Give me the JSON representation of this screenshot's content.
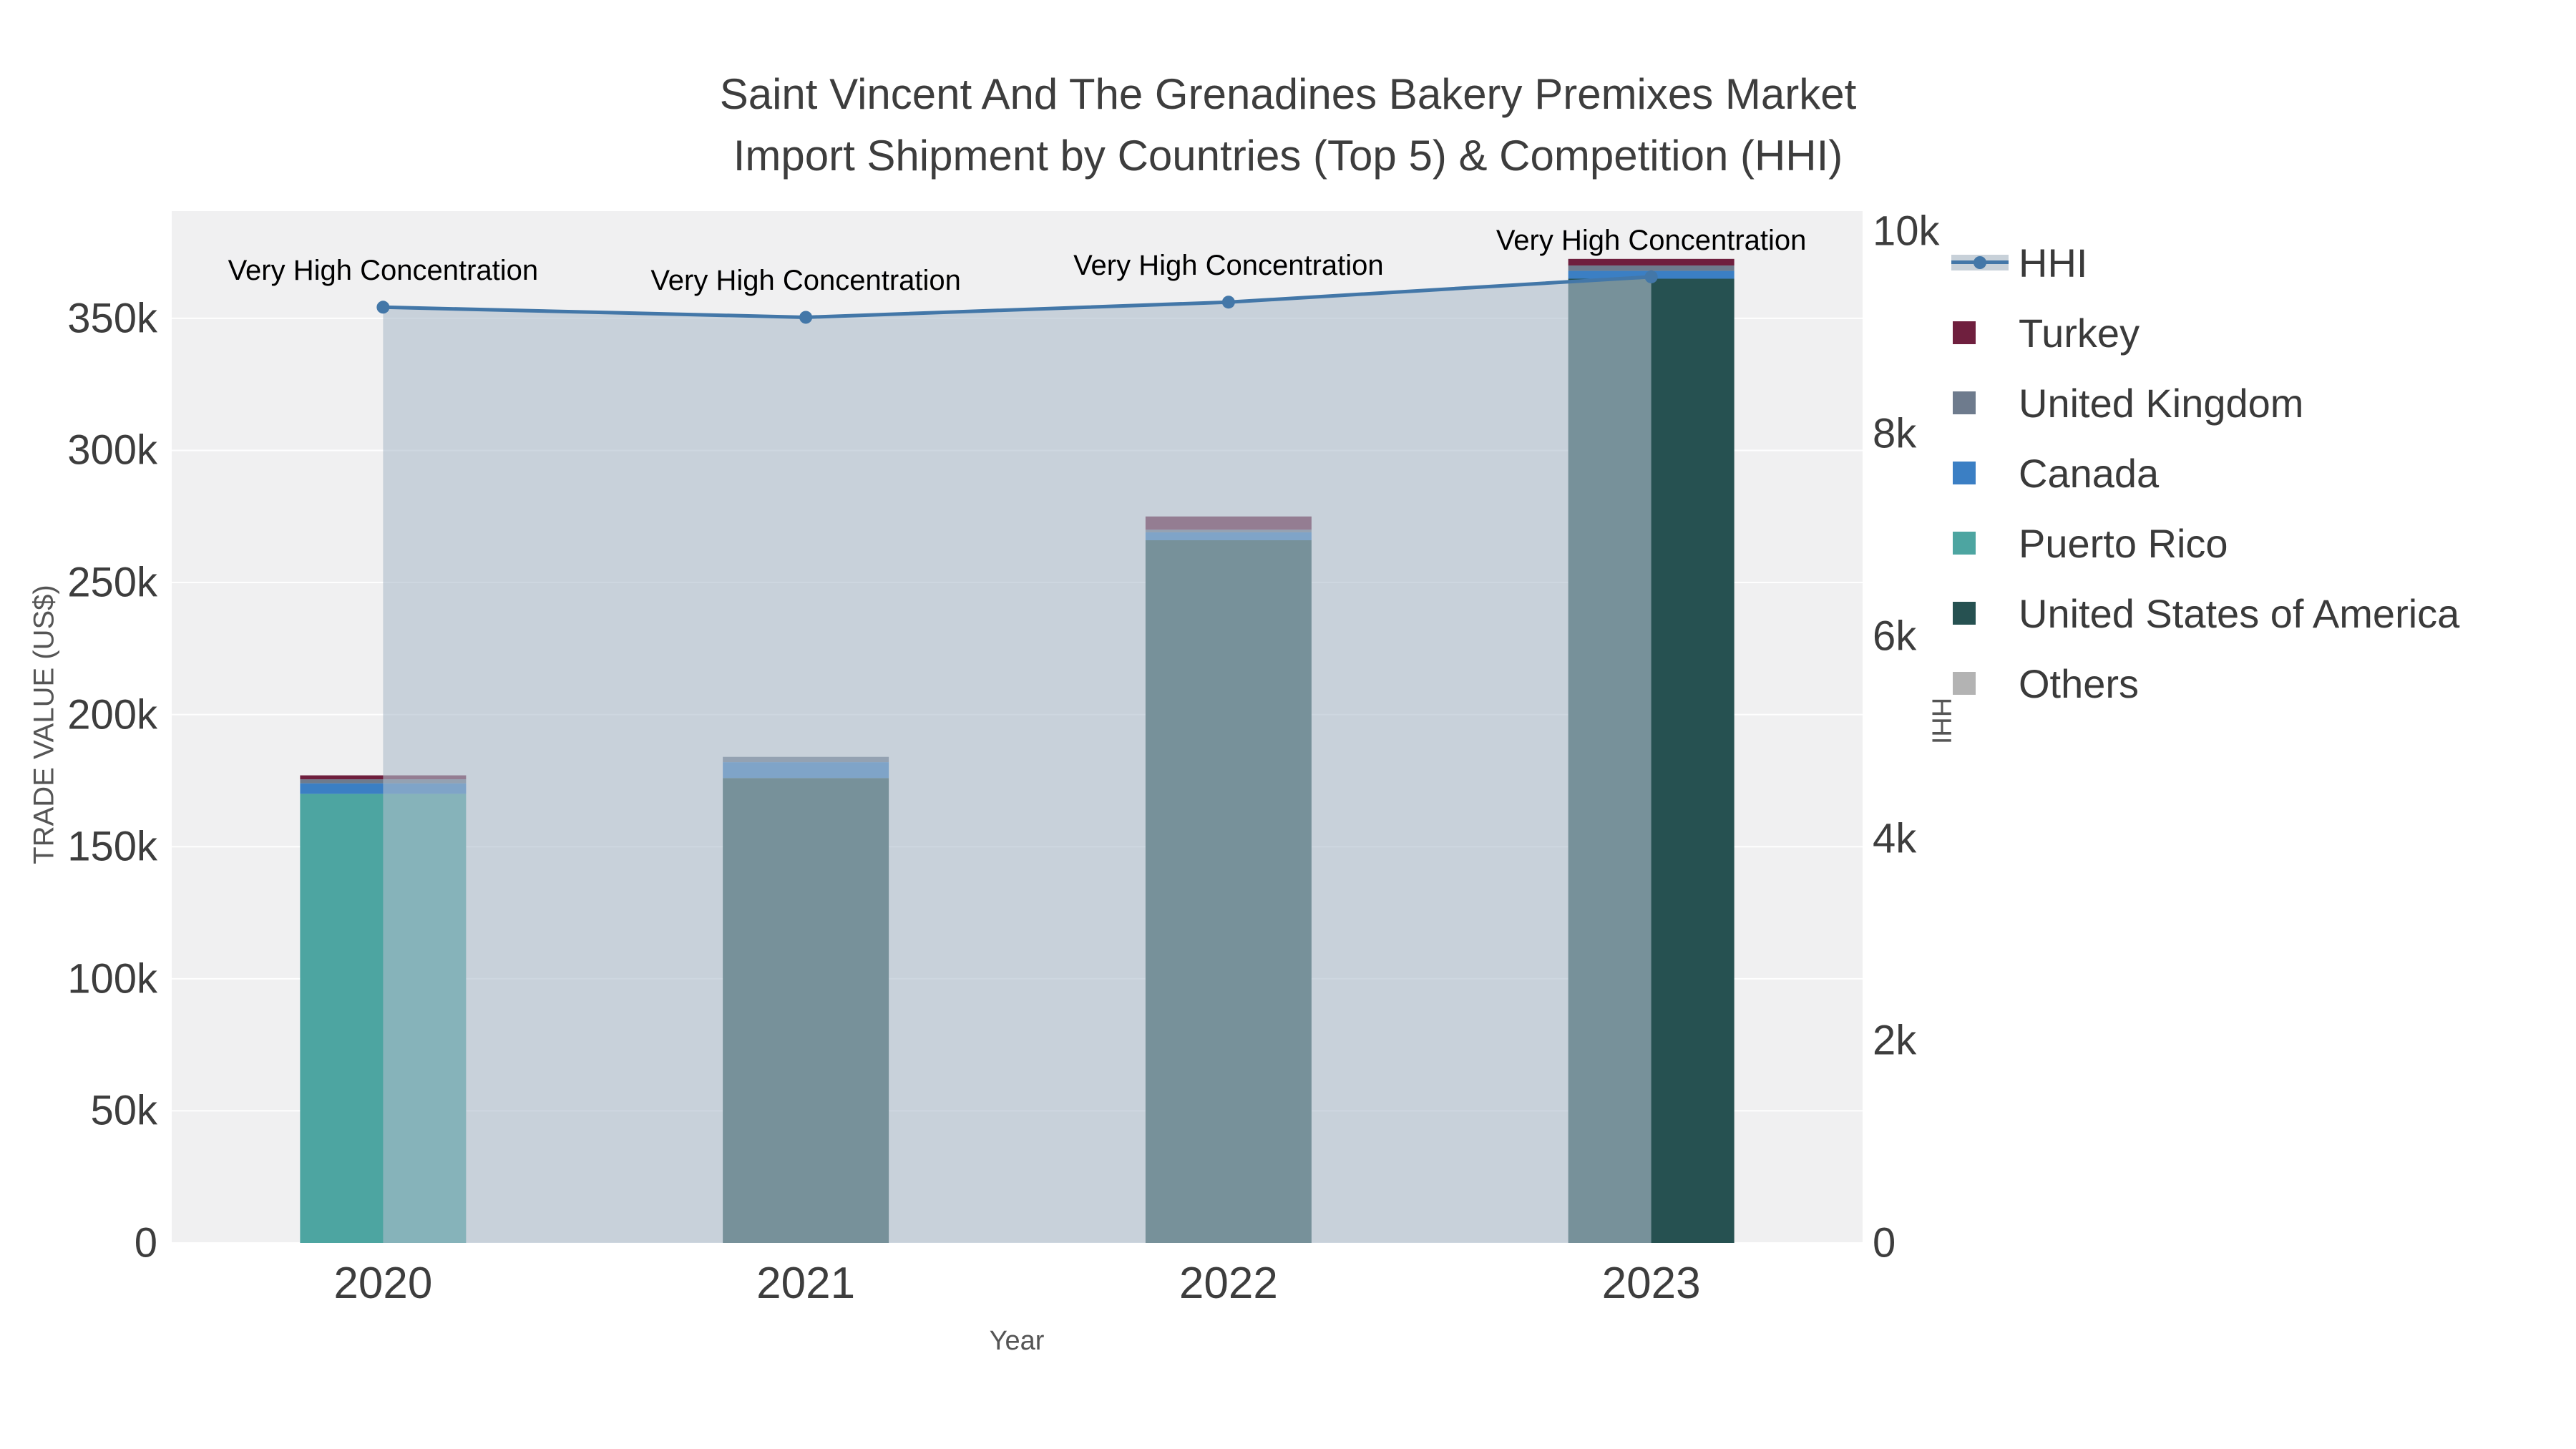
{
  "title": {
    "line1": "Saint Vincent And The Grenadines Bakery Premixes Market",
    "line2": "Import Shipment by Countries (Top 5) & Competition (HHI)"
  },
  "axes": {
    "x": {
      "title": "Year"
    },
    "y_left": {
      "title": "TRADE VALUE (US$)",
      "tick_labels": [
        "0",
        "50k",
        "100k",
        "150k",
        "200k",
        "250k",
        "300k",
        "350k"
      ],
      "tick_values": [
        0,
        50000,
        100000,
        150000,
        200000,
        250000,
        300000,
        350000
      ],
      "range": [
        0,
        390600
      ],
      "grid": true
    },
    "y_right": {
      "title": "HHI",
      "tick_labels": [
        "0",
        "2k",
        "4k",
        "6k",
        "8k",
        "10k"
      ],
      "tick_values": [
        0,
        2000,
        4000,
        6000,
        8000,
        10000
      ],
      "range": [
        0,
        10200
      ],
      "grid": false
    }
  },
  "chart_data": {
    "type": "bar",
    "subtype": "stacked-bar-with-line",
    "categories": [
      "2020",
      "2021",
      "2022",
      "2023"
    ],
    "bar_series": [
      {
        "name": "United States of America",
        "color": "#265151",
        "values": [
          0,
          176000,
          266000,
          365000
        ]
      },
      {
        "name": "Puerto Rico",
        "color": "#4da5a1",
        "values": [
          170000,
          0,
          0,
          0
        ]
      },
      {
        "name": "Canada",
        "color": "#3b7fc4",
        "values": [
          4000,
          6000,
          3000,
          3000
        ]
      },
      {
        "name": "United Kingdom",
        "color": "#6e7b8d",
        "values": [
          1500,
          2000,
          1000,
          2000
        ]
      },
      {
        "name": "Turkey",
        "color": "#6f1f3e",
        "values": [
          1500,
          0,
          5000,
          2500
        ]
      },
      {
        "name": "Others",
        "color": "#b3b3b3",
        "values": [
          0,
          0,
          0,
          0
        ]
      }
    ],
    "bar_totals": [
      177000,
      184000,
      275000,
      372500
    ],
    "line_series": {
      "name": "HHI",
      "axis": "right",
      "color": "#4377a8",
      "fill": "rgba(174,189,204,0.6)",
      "values": [
        9250,
        9150,
        9300,
        9550
      ]
    },
    "annotations": [
      "Very High Concentration",
      "Very High Concentration",
      "Very High Concentration",
      "Very High Concentration"
    ],
    "legend_position": "right",
    "plot_background": "#f0f0f1",
    "grid_color": "rgba(255,255,255,0.9)"
  },
  "legend": [
    {
      "name": "HHI",
      "type": "line",
      "color": "#4377a8",
      "fill": "#c8d1d9"
    },
    {
      "name": "Turkey",
      "type": "swatch",
      "color": "#6f1f3e"
    },
    {
      "name": "United Kingdom",
      "type": "swatch",
      "color": "#6e7b8d"
    },
    {
      "name": "Canada",
      "type": "swatch",
      "color": "#3b7fc4"
    },
    {
      "name": "Puerto Rico",
      "type": "swatch",
      "color": "#4da5a1"
    },
    {
      "name": "United States of America",
      "type": "swatch",
      "color": "#265151"
    },
    {
      "name": "Others",
      "type": "swatch",
      "color": "#b3b3b3"
    }
  ]
}
